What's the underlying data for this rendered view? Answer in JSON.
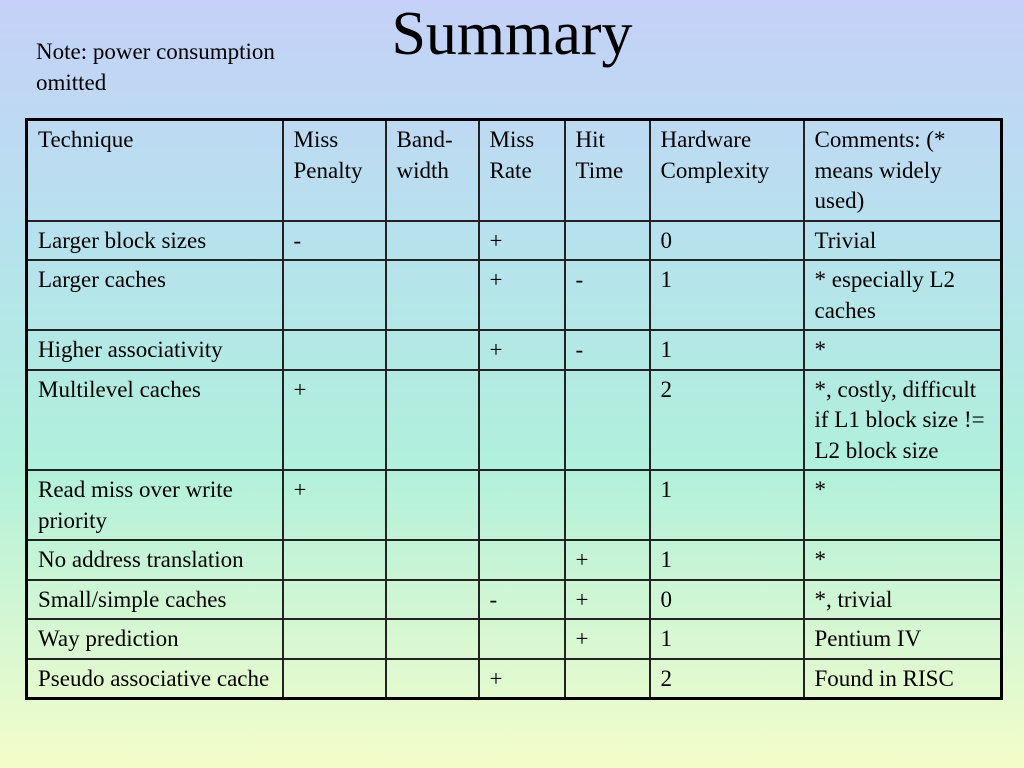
{
  "slide": {
    "title": "Summary",
    "note": "Note:  power consumption omitted"
  },
  "table": {
    "headers": [
      "Technique",
      "Miss Penalty",
      "Band-width",
      "Miss Rate",
      "Hit Time",
      "Hardware Complexity",
      "Comments: (* means widely used)"
    ],
    "rows": [
      [
        "Larger block sizes",
        "-",
        "",
        "+",
        "",
        "0",
        "Trivial"
      ],
      [
        "Larger caches",
        "",
        "",
        "+",
        "-",
        "1",
        "* especially L2 caches"
      ],
      [
        "Higher associativity",
        "",
        "",
        "+",
        "-",
        "1",
        "*"
      ],
      [
        "Multilevel caches",
        "+",
        "",
        "",
        "",
        "2",
        "*, costly, difficult if L1 block size != L2 block size"
      ],
      [
        "Read miss over write priority",
        "+",
        "",
        "",
        "",
        "1",
        "*"
      ],
      [
        "No address translation",
        "",
        "",
        "",
        "+",
        "1",
        "*"
      ],
      [
        "Small/simple caches",
        "",
        "",
        "-",
        "+",
        "0",
        "*, trivial"
      ],
      [
        "Way prediction",
        "",
        "",
        "",
        "+",
        "1",
        "Pentium IV"
      ],
      [
        "Pseudo associative cache",
        "",
        "",
        "+",
        "",
        "2",
        "Found in RISC"
      ]
    ]
  }
}
